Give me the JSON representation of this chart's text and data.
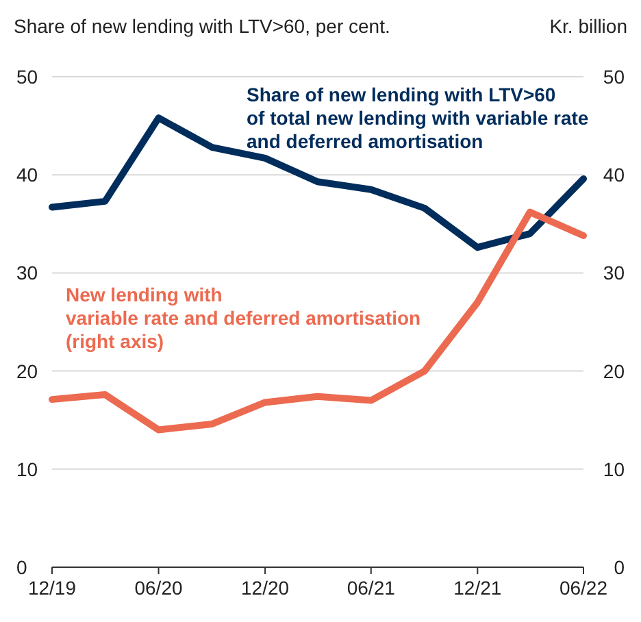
{
  "chart_data": {
    "type": "line",
    "ylabel": "Share of new lending with LTV>60, per cent.",
    "y2label": "Kr. billion",
    "x": [
      "2019-12",
      "2020-03",
      "2020-06",
      "2020-09",
      "2020-12",
      "2021-03",
      "2021-06",
      "2021-09",
      "2021-12",
      "2022-03",
      "2022-06"
    ],
    "xlim": [
      "2019-12",
      "2022-06"
    ],
    "xticks": [
      {
        "value": "2019-12",
        "label": "12/19"
      },
      {
        "value": "2020-06",
        "label": "06/20"
      },
      {
        "value": "2020-12",
        "label": "12/20"
      },
      {
        "value": "2021-06",
        "label": "06/21"
      },
      {
        "value": "2021-12",
        "label": "12/21"
      },
      {
        "value": "2022-06",
        "label": "06/22"
      }
    ],
    "ylim": [
      0,
      50
    ],
    "yticks": [
      0,
      10,
      20,
      30,
      40,
      50
    ],
    "y2lim": [
      0,
      50
    ],
    "y2ticks": [
      0,
      10,
      20,
      30,
      40,
      50
    ],
    "grid": "y",
    "line_style": "solid",
    "series": [
      {
        "name": "Share of new lending with LTV>60\nof total new lending with variable rate\nand deferred amortisation",
        "color": "#002d5c",
        "values": [
          36.7,
          37.3,
          45.8,
          42.8,
          41.7,
          39.3,
          38.5,
          36.6,
          32.6,
          34.0,
          39.6
        ]
      },
      {
        "name": "New lending with\nvariable rate and deferred amortisation\n(right axis)",
        "color": "#ec6a50",
        "axis": "y2",
        "values": [
          17.1,
          17.6,
          14.0,
          14.6,
          16.8,
          17.4,
          17.0,
          20.0,
          27.0,
          36.2,
          33.8
        ]
      }
    ]
  }
}
